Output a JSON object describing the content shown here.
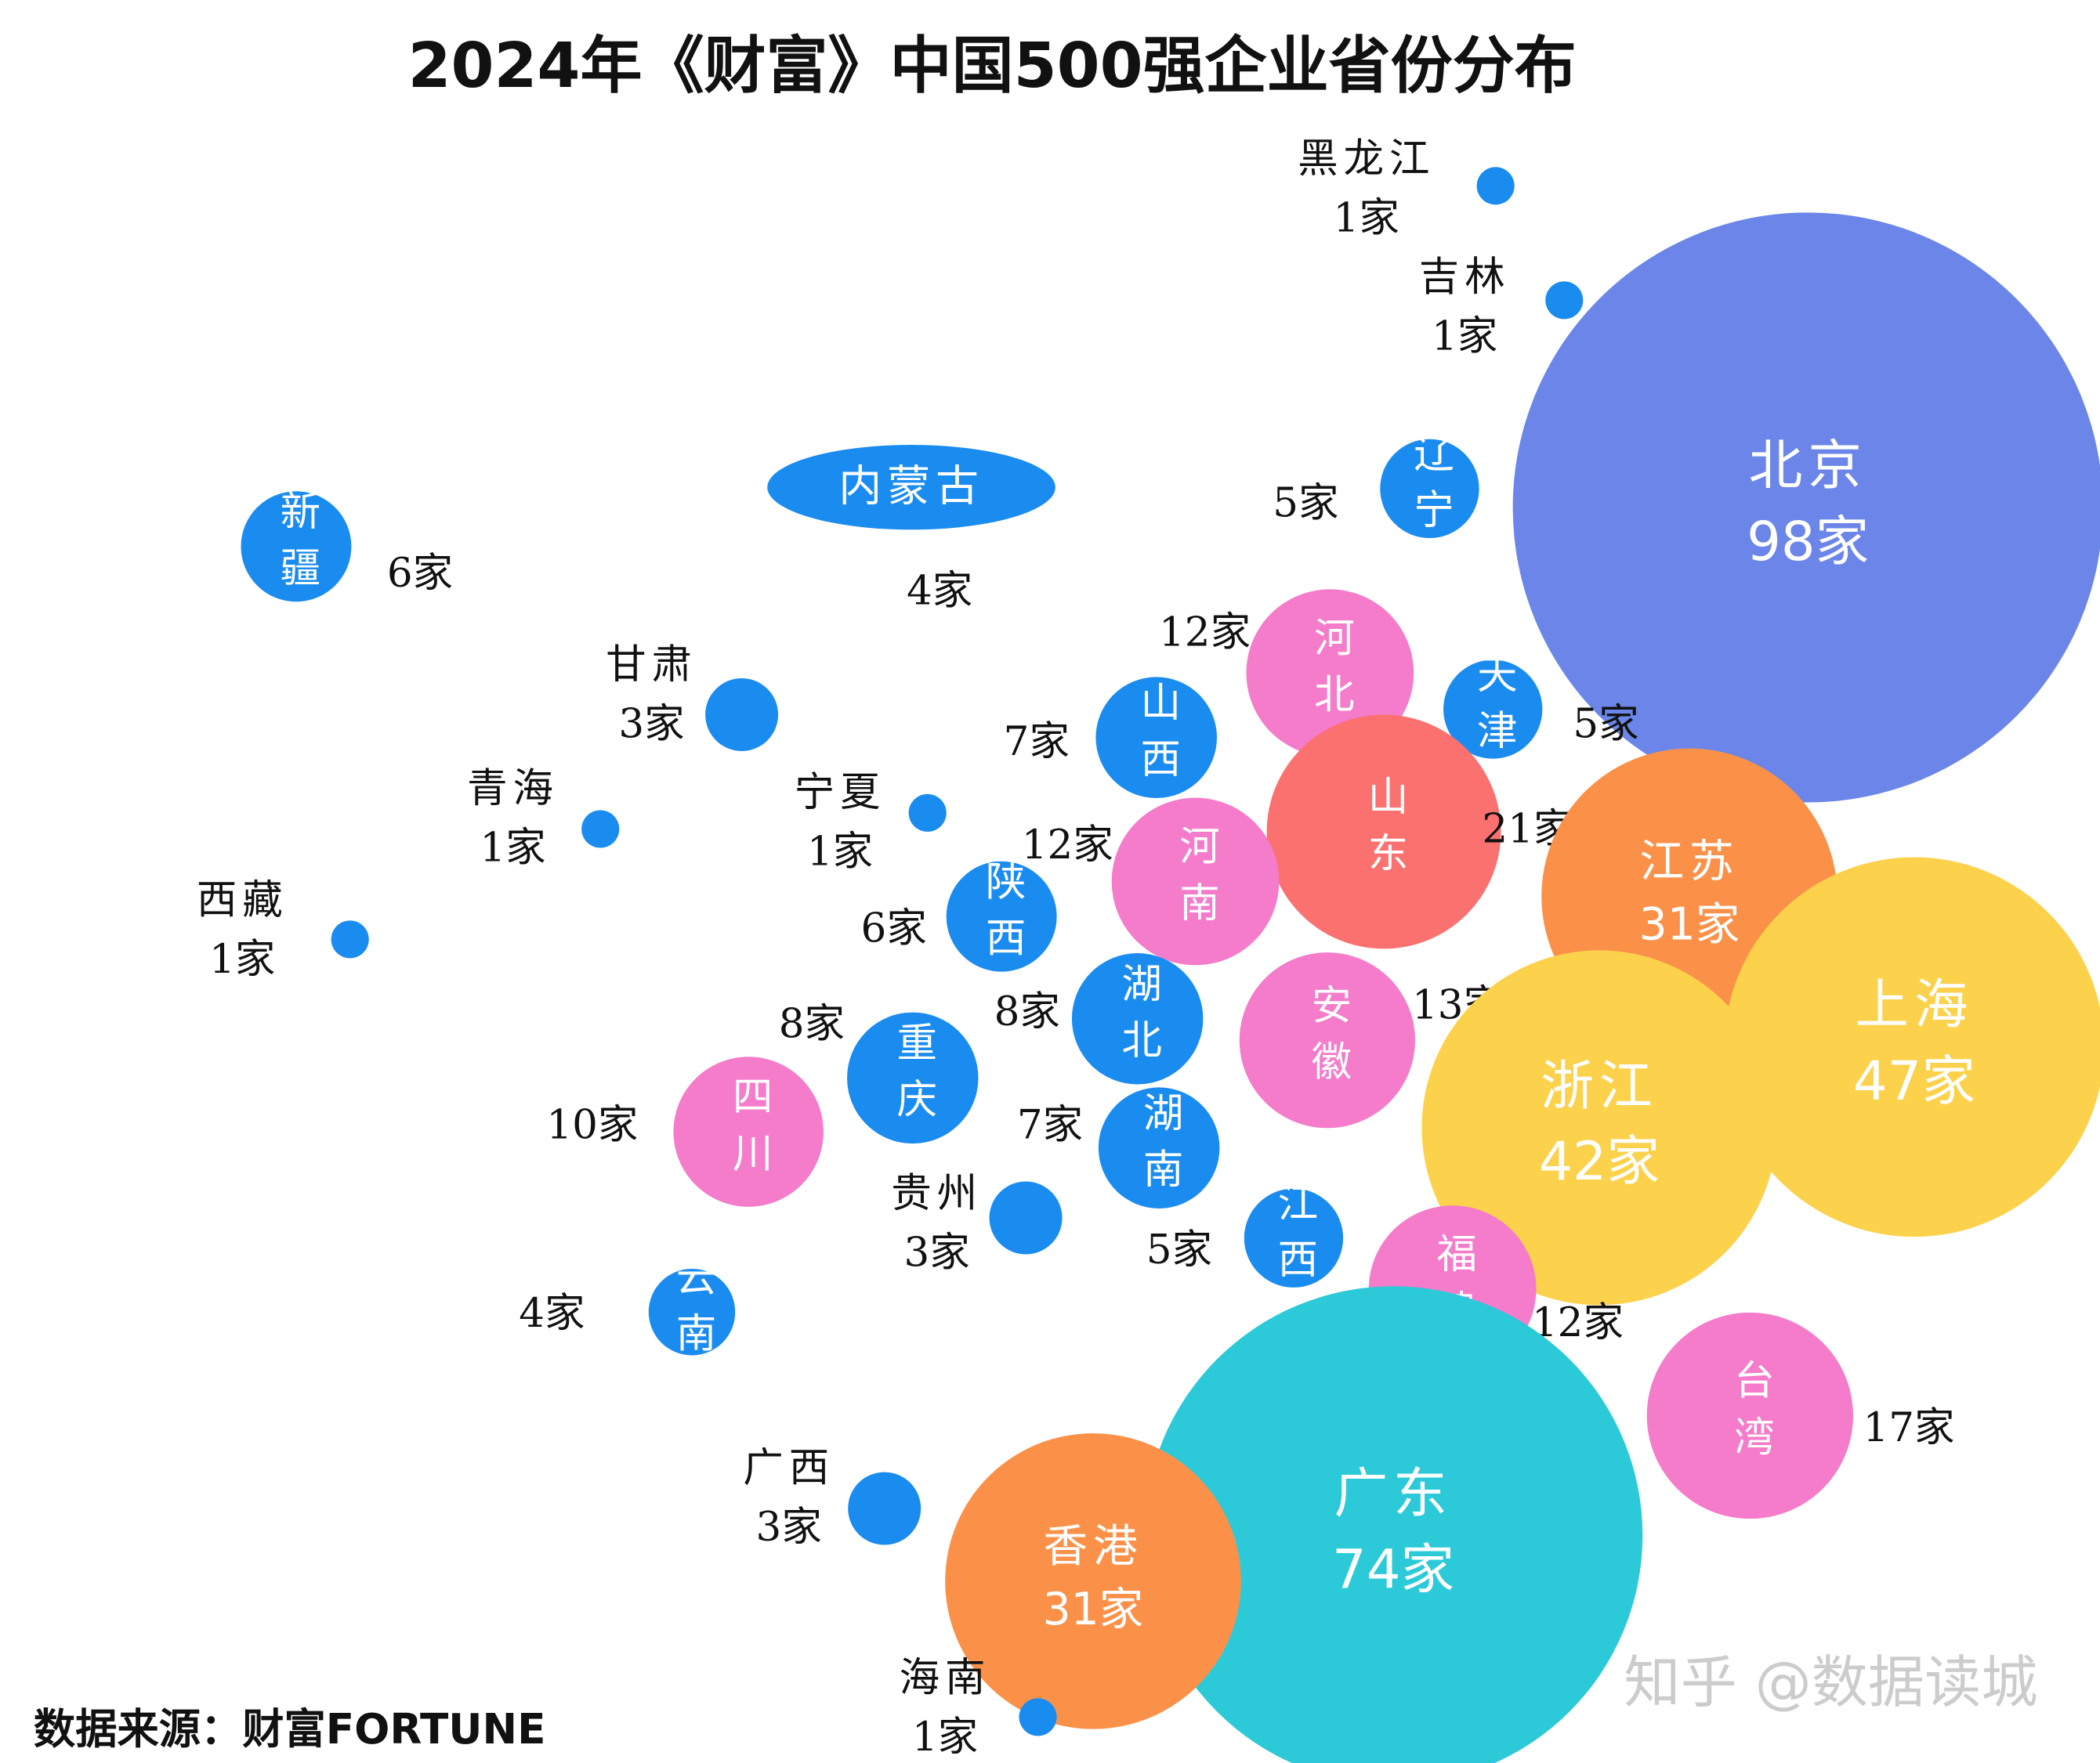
{
  "chart_data": {
    "type": "bubble",
    "title": "2024年《财富》中国500强企业省份分布",
    "source": "数据来源：财富FORTUNE",
    "watermark": "知乎 @数据读城",
    "categories": [
      "黑龙江",
      "吉林",
      "北京",
      "辽宁",
      "内蒙古",
      "新疆",
      "河北",
      "天津",
      "甘肃",
      "山西",
      "山东",
      "青海",
      "宁夏",
      "河南",
      "江苏",
      "西藏",
      "陕西",
      "湖北",
      "安徽",
      "上海",
      "重庆",
      "四川",
      "浙江",
      "湖南",
      "贵州",
      "江西",
      "福建",
      "云南",
      "台湾",
      "广西",
      "广东",
      "香港",
      "海南"
    ],
    "values": [
      1,
      1,
      98,
      5,
      4,
      6,
      12,
      5,
      3,
      7,
      21,
      1,
      1,
      12,
      31,
      1,
      6,
      8,
      13,
      47,
      8,
      10,
      42,
      7,
      3,
      5,
      12,
      4,
      17,
      3,
      74,
      31,
      1
    ],
    "value_labels": [
      "1家",
      "1家",
      "98家",
      "5家",
      "4家",
      "6家",
      "12家",
      "5家",
      "3家",
      "7家",
      "21家",
      "1家",
      "1家",
      "12家",
      "31家",
      "1家",
      "6家",
      "8家",
      "13家",
      "47家",
      "8家",
      "10家",
      "42家",
      "7家",
      "3家",
      "5家",
      "12家",
      "4家",
      "17家",
      "3家",
      "74家",
      "31家",
      "1家"
    ],
    "colors": [
      "#1a8cf0",
      "#1a8cf0",
      "#6b86e8",
      "#1a8cf0",
      "#1a8cf0",
      "#1a8cf0",
      "#f57bcb",
      "#1a8cf0",
      "#1a8cf0",
      "#1a8cf0",
      "#fb7170",
      "#1a8cf0",
      "#1a8cf0",
      "#f57bcb",
      "#fb9149",
      "#1a8cf0",
      "#1a8cf0",
      "#1a8cf0",
      "#f57bcb",
      "#fcd24c",
      "#1a8cf0",
      "#f57bcb",
      "#fcd24c",
      "#1a8cf0",
      "#1a8cf0",
      "#1a8cf0",
      "#f57bcb",
      "#1a8cf0",
      "#f57bcb",
      "#1a8cf0",
      "#2ccad8",
      "#fb9149",
      "#1a8cf0"
    ]
  }
}
